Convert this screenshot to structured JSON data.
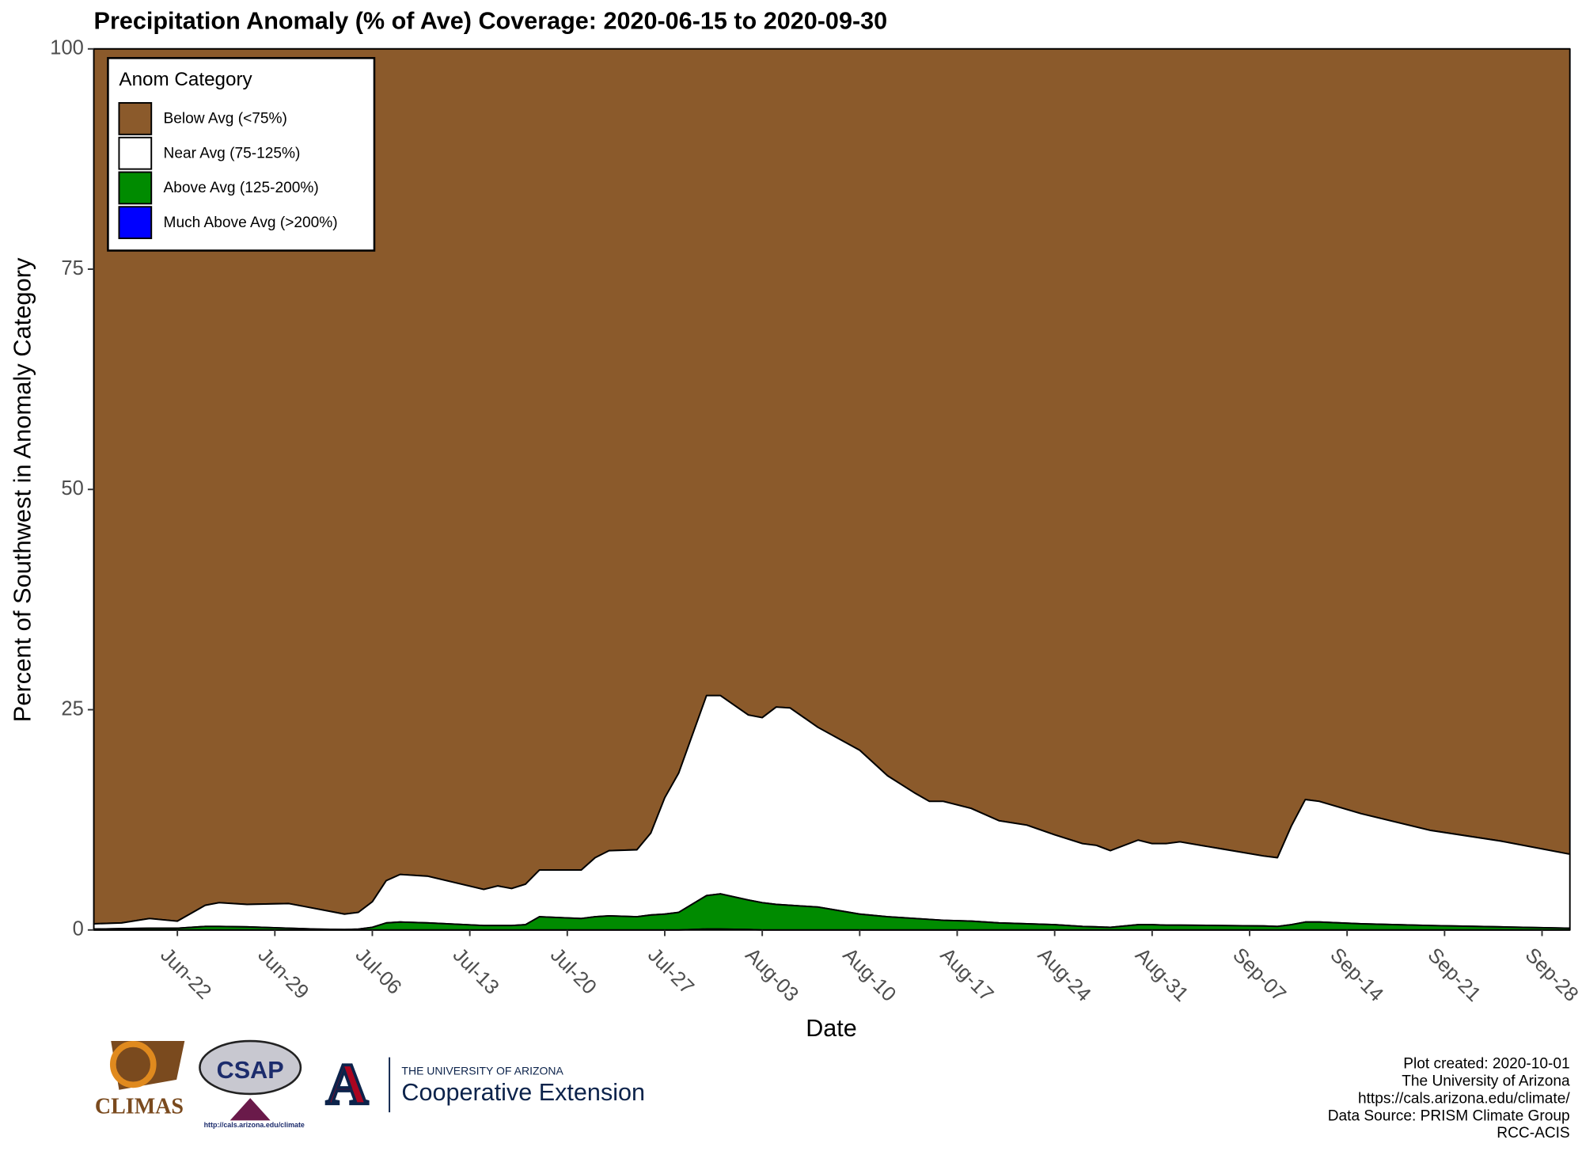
{
  "chart_data": {
    "type": "stacked_area",
    "title": "Precipitation Anomaly (% of Ave) Coverage: 2020-06-15 to 2020-09-30",
    "x_label": "Date",
    "y_label": "Percent of Southwest in Anomaly Category",
    "legend_title": "Anom Category",
    "legend_position": "top-left",
    "x": [
      "2020-06-16",
      "2020-06-18",
      "2020-06-20",
      "2020-06-22",
      "2020-06-24",
      "2020-06-25",
      "2020-06-27",
      "2020-06-30",
      "2020-07-02",
      "2020-07-04",
      "2020-07-05",
      "2020-07-06",
      "2020-07-07",
      "2020-07-08",
      "2020-07-10",
      "2020-07-14",
      "2020-07-15",
      "2020-07-16",
      "2020-07-17",
      "2020-07-18",
      "2020-07-21",
      "2020-07-22",
      "2020-07-23",
      "2020-07-25",
      "2020-07-26",
      "2020-07-27",
      "2020-07-28",
      "2020-07-30",
      "2020-07-31",
      "2020-08-02",
      "2020-08-03",
      "2020-08-04",
      "2020-08-05",
      "2020-08-07",
      "2020-08-10",
      "2020-08-12",
      "2020-08-14",
      "2020-08-15",
      "2020-08-16",
      "2020-08-18",
      "2020-08-20",
      "2020-08-22",
      "2020-08-24",
      "2020-08-26",
      "2020-08-27",
      "2020-08-28",
      "2020-08-30",
      "2020-08-31",
      "2020-09-01",
      "2020-09-02",
      "2020-09-05",
      "2020-09-08",
      "2020-09-09",
      "2020-09-10",
      "2020-09-11",
      "2020-09-12",
      "2020-09-15",
      "2020-09-20",
      "2020-09-25",
      "2020-09-30"
    ],
    "series": [
      {
        "name": "Below Avg (<75%)",
        "color": "#8b5a2b",
        "values": [
          99.3,
          99.2,
          98.7,
          99.0,
          97.2,
          96.9,
          97.1,
          97.0,
          97.6,
          98.2,
          98.0,
          96.8,
          94.4,
          93.7,
          93.9,
          95.4,
          95.0,
          95.3,
          94.8,
          93.2,
          93.2,
          91.8,
          91.0,
          90.9,
          89.0,
          85.0,
          82.2,
          73.4,
          73.4,
          75.6,
          75.9,
          74.7,
          74.8,
          77.0,
          79.6,
          82.5,
          84.5,
          85.4,
          85.4,
          86.2,
          87.6,
          88.1,
          89.2,
          90.2,
          90.4,
          91.0,
          89.8,
          90.2,
          90.2,
          90.0,
          90.8,
          91.6,
          91.8,
          88.2,
          85.2,
          85.4,
          86.8,
          88.7,
          89.9,
          91.4
        ]
      },
      {
        "name": "Near Avg (75-125%)",
        "color": "#ffffff",
        "values": [
          0.6,
          0.65,
          1.1,
          0.8,
          2.4,
          2.7,
          2.55,
          2.8,
          2.3,
          1.75,
          1.9,
          2.9,
          4.8,
          5.4,
          5.3,
          4.1,
          4.5,
          4.2,
          4.6,
          5.3,
          5.5,
          6.7,
          7.4,
          7.6,
          9.3,
          13.2,
          15.8,
          22.7,
          22.5,
          21.0,
          21.0,
          22.4,
          22.4,
          20.4,
          18.6,
          16.0,
          14.2,
          13.4,
          13.5,
          12.8,
          11.6,
          11.2,
          10.2,
          9.4,
          9.25,
          8.7,
          9.6,
          9.2,
          9.25,
          9.45,
          8.7,
          7.95,
          7.8,
          11.2,
          13.9,
          13.7,
          12.5,
          10.8,
          9.75,
          8.4
        ]
      },
      {
        "name": "Above Avg (125-200%)",
        "color": "#008b00",
        "values": [
          0.1,
          0.15,
          0.2,
          0.2,
          0.4,
          0.4,
          0.35,
          0.2,
          0.1,
          0.05,
          0.1,
          0.3,
          0.8,
          0.9,
          0.8,
          0.5,
          0.5,
          0.5,
          0.6,
          1.5,
          1.3,
          1.5,
          1.6,
          1.5,
          1.7,
          1.8,
          2.0,
          3.8,
          4.0,
          3.35,
          3.1,
          2.9,
          2.8,
          2.6,
          1.8,
          1.5,
          1.3,
          1.2,
          1.1,
          1.0,
          0.8,
          0.7,
          0.6,
          0.4,
          0.35,
          0.3,
          0.6,
          0.6,
          0.55,
          0.55,
          0.5,
          0.45,
          0.4,
          0.6,
          0.9,
          0.9,
          0.7,
          0.5,
          0.35,
          0.2
        ]
      },
      {
        "name": "Much Above Avg (>200%)",
        "color": "#0000ff",
        "values": [
          0,
          0,
          0,
          0,
          0,
          0,
          0,
          0,
          0,
          0,
          0,
          0,
          0,
          0,
          0,
          0,
          0,
          0,
          0,
          0,
          0,
          0,
          0,
          0,
          0,
          0,
          0,
          0.1,
          0.1,
          0.05,
          0,
          0,
          0,
          0,
          0,
          0,
          0,
          0,
          0,
          0,
          0,
          0,
          0,
          0,
          0,
          0,
          0,
          0,
          0,
          0,
          0,
          0,
          0,
          0,
          0,
          0,
          0,
          0,
          0,
          0
        ]
      }
    ],
    "xlim": [
      "2020-06-16",
      "2020-09-30"
    ],
    "xticks": [
      {
        "value": "2020-06-22",
        "label": "Jun-22"
      },
      {
        "value": "2020-06-29",
        "label": "Jun-29"
      },
      {
        "value": "2020-07-06",
        "label": "Jul-06"
      },
      {
        "value": "2020-07-13",
        "label": "Jul-13"
      },
      {
        "value": "2020-07-20",
        "label": "Jul-20"
      },
      {
        "value": "2020-07-27",
        "label": "Jul-27"
      },
      {
        "value": "2020-08-03",
        "label": "Aug-03"
      },
      {
        "value": "2020-08-10",
        "label": "Aug-10"
      },
      {
        "value": "2020-08-17",
        "label": "Aug-17"
      },
      {
        "value": "2020-08-24",
        "label": "Aug-24"
      },
      {
        "value": "2020-08-31",
        "label": "Aug-31"
      },
      {
        "value": "2020-09-07",
        "label": "Sep-07"
      },
      {
        "value": "2020-09-14",
        "label": "Sep-14"
      },
      {
        "value": "2020-09-21",
        "label": "Sep-21"
      },
      {
        "value": "2020-09-28",
        "label": "Sep-28"
      }
    ],
    "ylim": [
      0,
      100
    ],
    "yticks": [
      0,
      25,
      50,
      75,
      100
    ],
    "grid": false,
    "footer": [
      "Plot created: 2020-10-01",
      "The University of Arizona",
      "https://cals.arizona.edu/climate/",
      "Data Source: PRISM Climate Group",
      "RCC-ACIS"
    ],
    "logos": {
      "climas": "CLIMAS",
      "csap": "CSAP",
      "csap_url": "http://cals.arizona.edu/climate",
      "ua_letter": "A",
      "ua_name": "THE UNIVERSITY OF ARIZONA",
      "ua_unit": "Cooperative Extension"
    }
  }
}
